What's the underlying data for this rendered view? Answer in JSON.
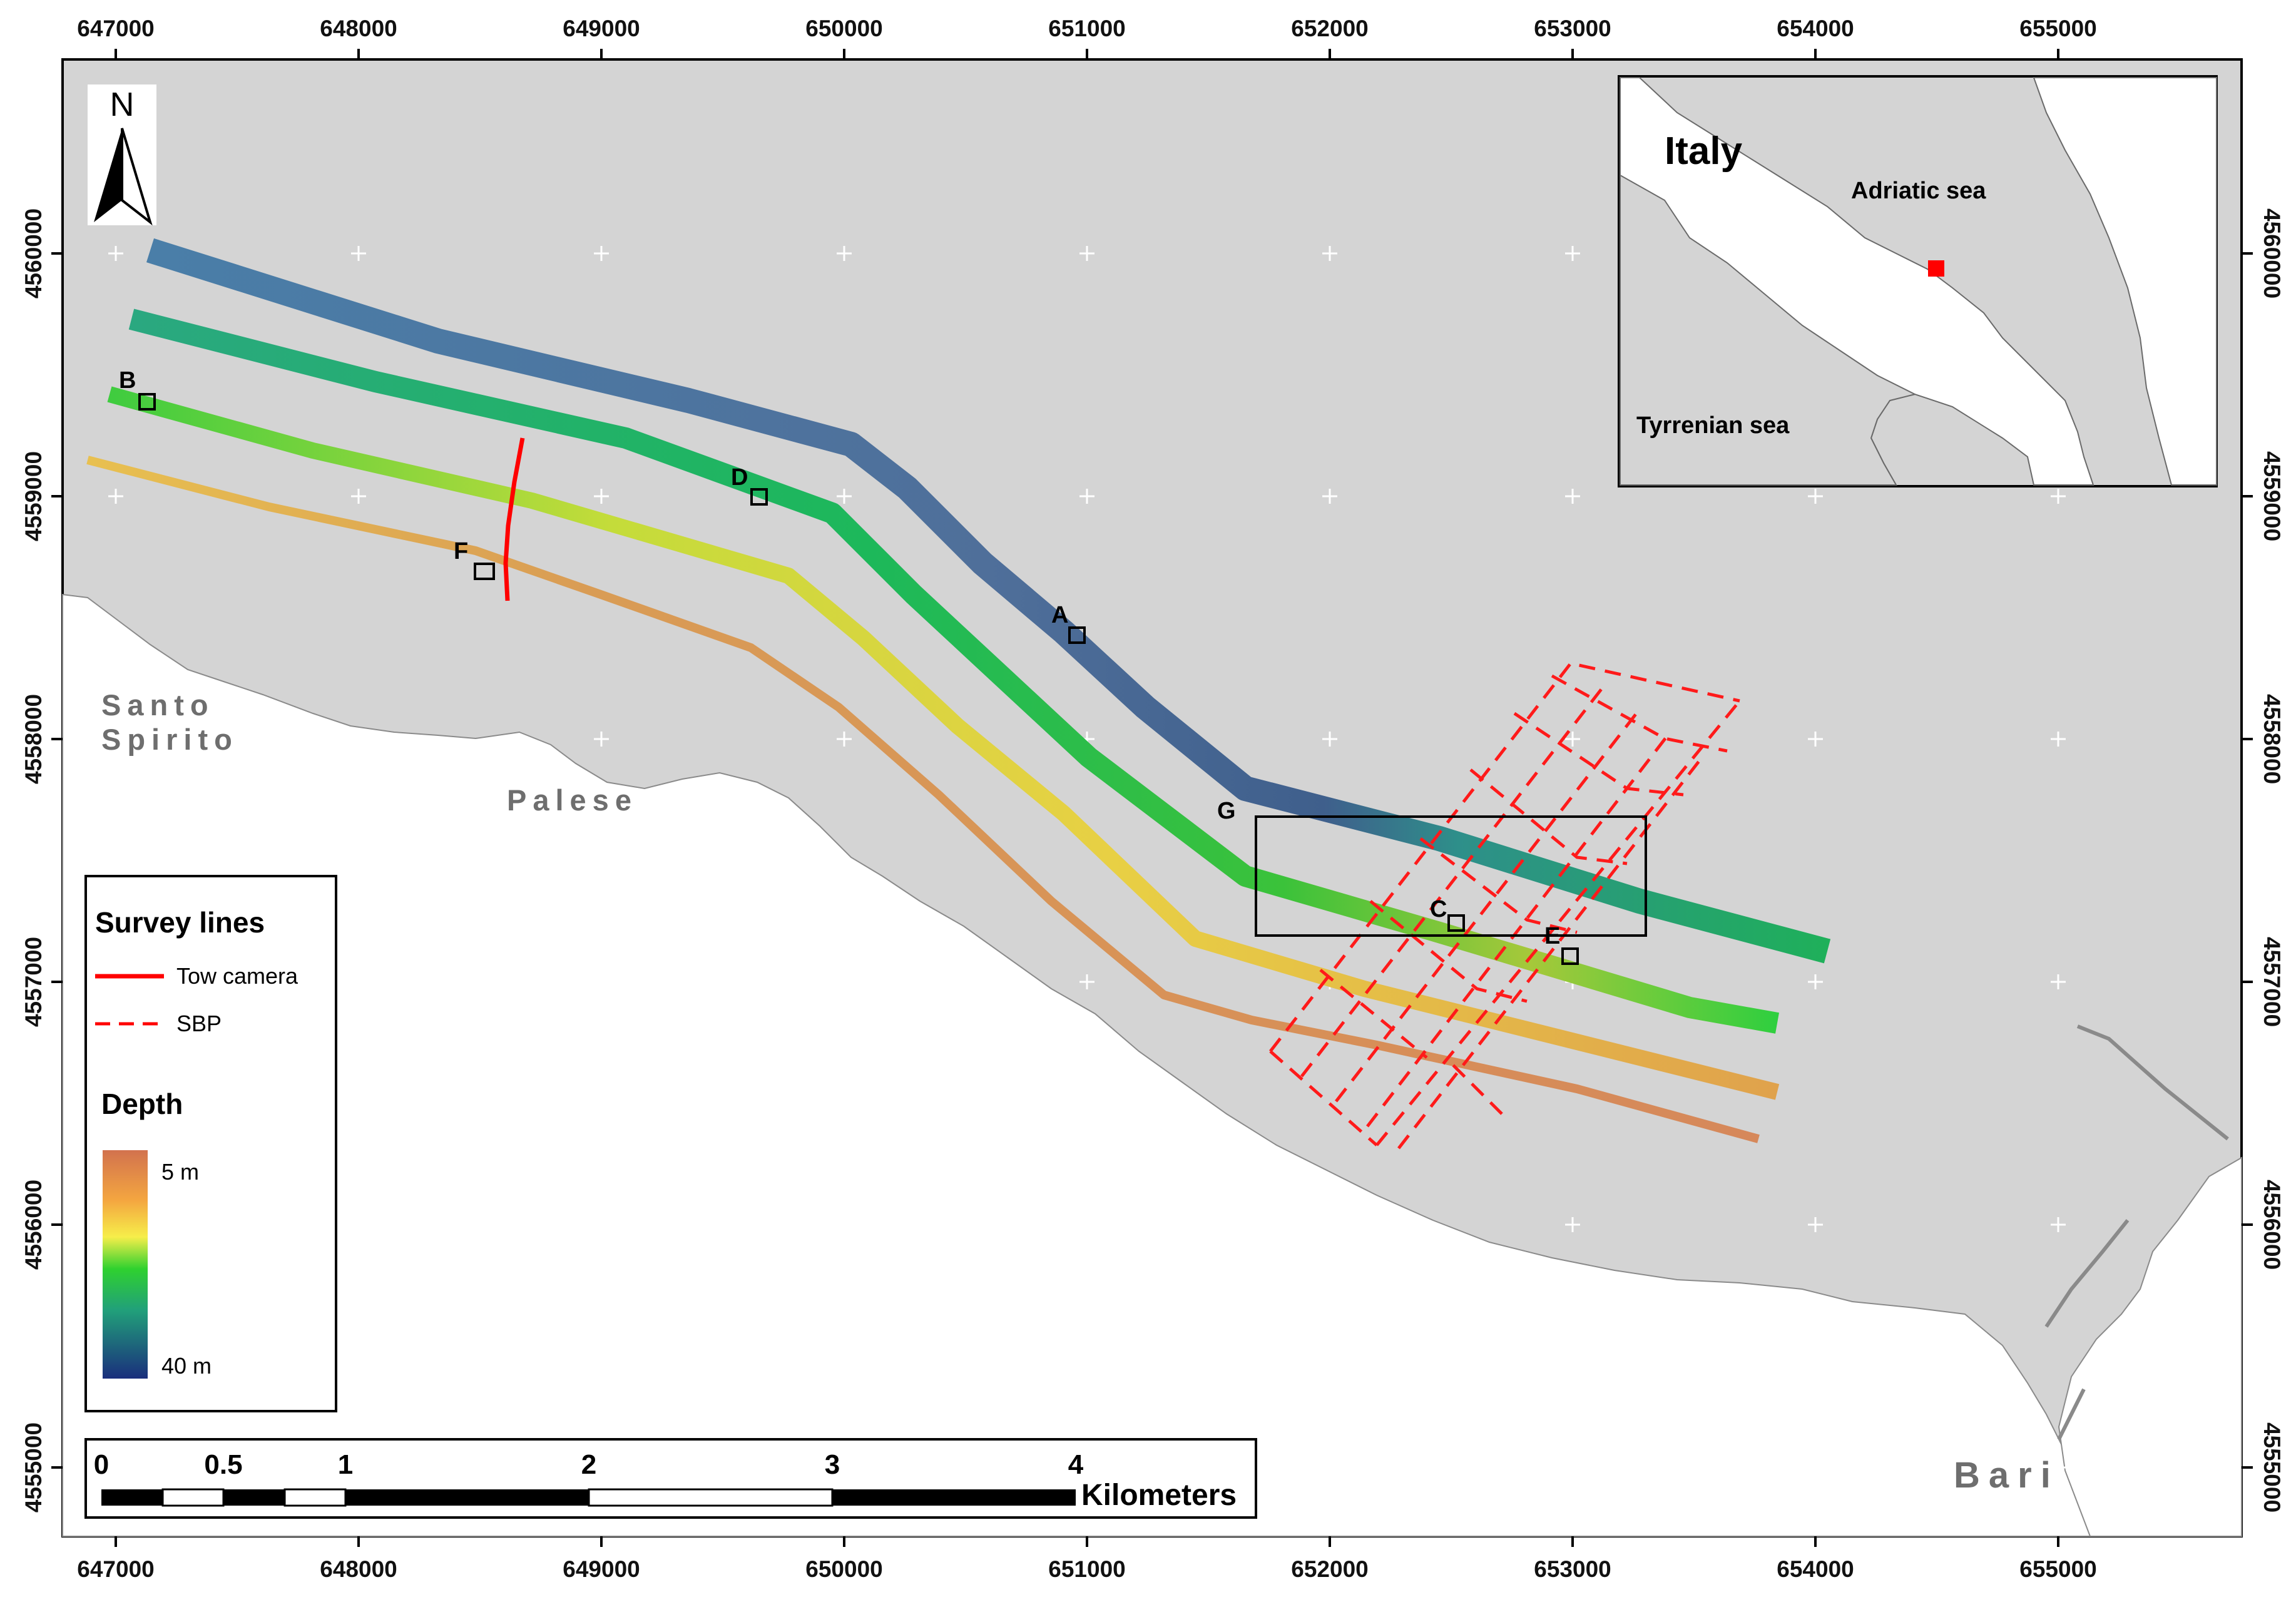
{
  "map": {
    "x_ticks": [
      "647000",
      "648000",
      "649000",
      "650000",
      "651000",
      "652000",
      "653000",
      "654000",
      "655000"
    ],
    "y_ticks": [
      "4560000",
      "4559000",
      "4558000",
      "4557000",
      "4556000",
      "4555000"
    ],
    "north_label": "N",
    "places": {
      "santo": "Santo",
      "spirito": "Spirito",
      "palese": "Palese",
      "bari": "Bari"
    },
    "sites": [
      "A",
      "B",
      "C",
      "D",
      "E",
      "F",
      "G"
    ]
  },
  "inset": {
    "country": "Italy",
    "adriatic": "Adriatic sea",
    "tyrrhenian": "Tyrrenian sea",
    "marker_color": "#ff0000"
  },
  "legend": {
    "survey_title": "Survey lines",
    "tow_camera": "Tow camera",
    "sbp": "SBP",
    "depth_title": "Depth",
    "depth_min": "5 m",
    "depth_max": "40 m",
    "tow_color": "#ff0000",
    "sbp_color": "#ff0000"
  },
  "scalebar": {
    "labels": [
      "0",
      "0.5",
      "1",
      "2",
      "3",
      "4"
    ],
    "unit": "Kilometers"
  },
  "colors": {
    "land": "#ffffff",
    "sea": "#d4d4d4",
    "depth_shallow": "#d97a4a",
    "depth_mid": "#f2d43a",
    "depth_green": "#2bc43a",
    "depth_deep": "#1d3a7a"
  }
}
